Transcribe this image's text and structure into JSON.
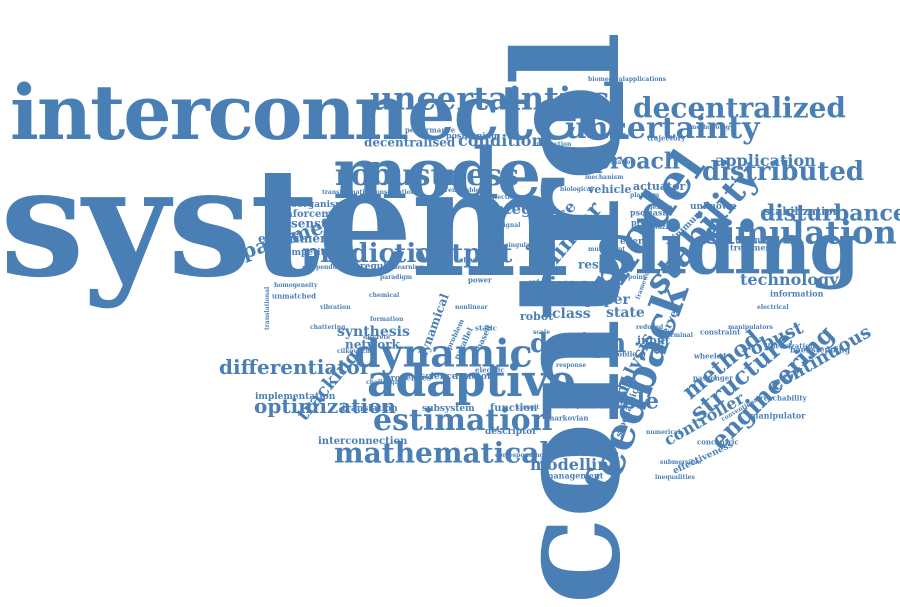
{
  "cloud": {
    "color": "#4a7fb5",
    "words": [
      {
        "text": "system",
        "weight": 1.0
      },
      {
        "text": "control",
        "weight": 0.95
      },
      {
        "text": "interconnected",
        "weight": 0.62
      },
      {
        "text": "mode",
        "weight": 0.6
      },
      {
        "text": "sliding",
        "weight": 0.55
      },
      {
        "text": "model",
        "weight": 0.42
      },
      {
        "text": "feedback",
        "weight": 0.4
      },
      {
        "text": "adaptive",
        "weight": 0.36
      },
      {
        "text": "dynamic",
        "weight": 0.34
      },
      {
        "text": "uncertainties",
        "weight": 0.3
      },
      {
        "text": "robustness",
        "weight": 0.3
      },
      {
        "text": "decentralized",
        "weight": 0.28
      },
      {
        "text": "uncertainty",
        "weight": 0.28
      },
      {
        "text": "simulation",
        "weight": 0.3
      },
      {
        "text": "stability",
        "weight": 0.3
      },
      {
        "text": "estimation",
        "weight": 0.28
      },
      {
        "text": "mathematical",
        "weight": 0.28
      },
      {
        "text": "distributed",
        "weight": 0.26
      },
      {
        "text": "predictive",
        "weight": 0.26
      },
      {
        "text": "output",
        "weight": 0.26
      },
      {
        "text": "disturbance",
        "weight": 0.24
      },
      {
        "text": "structure",
        "weight": 0.22
      },
      {
        "text": "engineering",
        "weight": 0.22
      },
      {
        "text": "design",
        "weight": 0.22
      },
      {
        "text": "optimization",
        "weight": 0.2
      },
      {
        "text": "differentiator",
        "weight": 0.2
      },
      {
        "text": "approach",
        "weight": 0.2
      },
      {
        "text": "parameter",
        "weight": 0.18
      },
      {
        "text": "linear",
        "weight": 0.18
      },
      {
        "text": "time",
        "weight": 0.18
      },
      {
        "text": "variable",
        "weight": 0.18
      },
      {
        "text": "method",
        "weight": 0.18
      },
      {
        "text": "analysis",
        "weight": 0.16
      },
      {
        "text": "robust",
        "weight": 0.16
      },
      {
        "text": "continuous",
        "weight": 0.15
      },
      {
        "text": "technology",
        "weight": 0.14
      },
      {
        "text": "application",
        "weight": 0.14
      },
      {
        "text": "modelling",
        "weight": 0.14
      },
      {
        "text": "tracking",
        "weight": 0.14
      },
      {
        "text": "condition",
        "weight": 0.13
      },
      {
        "text": "controller",
        "weight": 0.13
      },
      {
        "text": "surface",
        "weight": 0.12
      },
      {
        "text": "integral",
        "weight": 0.12
      },
      {
        "text": "synthesis",
        "weight": 0.11
      },
      {
        "text": "network",
        "weight": 0.1
      },
      {
        "text": "consensus",
        "weight": 0.1
      },
      {
        "text": "experimental",
        "weight": 0.1
      },
      {
        "text": "decentralised",
        "weight": 0.1
      },
      {
        "text": "paper",
        "weight": 0.1
      },
      {
        "text": "state",
        "weight": 0.1
      },
      {
        "text": "class",
        "weight": 0.1
      },
      {
        "text": "result",
        "weight": 0.09
      },
      {
        "text": "dynamical",
        "weight": 0.09
      },
      {
        "text": "stabilization",
        "weight": 0.09
      },
      {
        "text": "vehicle",
        "weight": 0.09
      },
      {
        "text": "actuator",
        "weight": 0.09
      },
      {
        "text": "interconnection",
        "weight": 0.09
      },
      {
        "text": "function",
        "weight": 0.09
      },
      {
        "text": "robot",
        "weight": 0.08
      },
      {
        "text": "input",
        "weight": 0.08
      },
      {
        "text": "observer",
        "weight": 0.08
      },
      {
        "text": "reinforcement",
        "weight": 0.08
      },
      {
        "text": "microorganism",
        "weight": 0.08
      },
      {
        "text": "competitive",
        "weight": 0.08
      },
      {
        "text": "implementation",
        "weight": 0.08
      },
      {
        "text": "translation",
        "weight": 0.08
      },
      {
        "text": "subsystem",
        "weight": 0.08
      },
      {
        "text": "science",
        "weight": 0.08
      },
      {
        "text": "reactor",
        "weight": 0.08
      },
      {
        "text": "properties",
        "weight": 0.07
      },
      {
        "text": "regular",
        "weight": 0.07
      },
      {
        "text": "descriptor",
        "weight": 0.07
      },
      {
        "text": "manipulator",
        "weight": 0.07
      },
      {
        "text": "backstepping",
        "weight": 0.07
      },
      {
        "text": "stochastic",
        "weight": 0.07
      },
      {
        "text": "effectiveness",
        "weight": 0.07
      },
      {
        "text": "energy",
        "weight": 0.07
      },
      {
        "text": "unknown",
        "weight": 0.07
      },
      {
        "text": "psoriasis",
        "weight": 0.06
      },
      {
        "text": "protein",
        "weight": 0.06
      },
      {
        "text": "treatment",
        "weight": 0.06
      },
      {
        "text": "technique",
        "weight": 0.06
      },
      {
        "text": "information",
        "weight": 0.06
      },
      {
        "text": "minimum",
        "weight": 0.06
      },
      {
        "text": "management",
        "weight": 0.06
      },
      {
        "text": "positioning",
        "weight": 0.06
      },
      {
        "text": "performance",
        "weight": 0.05
      },
      {
        "text": "trajectory",
        "weight": 0.05
      },
      {
        "text": "biomedicalapplications",
        "weight": 0.05
      },
      {
        "text": "unmatched",
        "weight": 0.05
      },
      {
        "text": "phase",
        "weight": 0.05
      },
      {
        "text": "mobile",
        "weight": 0.05
      },
      {
        "text": "electric",
        "weight": 0.05
      },
      {
        "text": "scheme",
        "weight": 0.05
      },
      {
        "text": "power",
        "weight": 0.05
      },
      {
        "text": "static",
        "weight": 0.05
      },
      {
        "text": "parallel",
        "weight": 0.05
      },
      {
        "text": "based",
        "weight": 0.05
      },
      {
        "text": "problem",
        "weight": 0.05
      },
      {
        "text": "markovian",
        "weight": 0.05
      },
      {
        "text": "concentric",
        "weight": 0.05
      },
      {
        "text": "constraint",
        "weight": 0.05
      },
      {
        "text": "wheeled",
        "weight": 0.05
      },
      {
        "text": "passenger",
        "weight": 0.05
      },
      {
        "text": "reachability",
        "weight": 0.05
      },
      {
        "text": "linearization",
        "weight": 0.05
      },
      {
        "text": "inequalities",
        "weight": 0.04
      },
      {
        "text": "terminal",
        "weight": 0.04
      },
      {
        "text": "infection",
        "weight": 0.04
      },
      {
        "text": "renewable",
        "weight": 0.04
      },
      {
        "text": "conservation",
        "weight": 0.04
      },
      {
        "text": "transformation",
        "weight": 0.04
      },
      {
        "text": "biological",
        "weight": 0.04
      },
      {
        "text": "mechanism",
        "weight": 0.04
      },
      {
        "text": "interaction",
        "weight": 0.04
      },
      {
        "text": "learning",
        "weight": 0.04
      },
      {
        "text": "pendulum",
        "weight": 0.04
      },
      {
        "text": "paradigm",
        "weight": 0.04
      },
      {
        "text": "chemical",
        "weight": 0.04
      },
      {
        "text": "challenging",
        "weight": 0.04
      },
      {
        "text": "homogeneity",
        "weight": 0.04
      },
      {
        "text": "translational",
        "weight": 0.04
      },
      {
        "text": "methodology",
        "weight": 0.04
      },
      {
        "text": "automation",
        "weight": 0.04
      },
      {
        "text": "framework",
        "weight": 0.04
      },
      {
        "text": "strategy",
        "weight": 0.04
      },
      {
        "text": "rule",
        "weight": 0.04
      },
      {
        "text": "free",
        "weight": 0.04
      },
      {
        "text": "order",
        "weight": 0.04
      },
      {
        "text": "point",
        "weight": 0.04
      },
      {
        "text": "scale",
        "weight": 0.04
      },
      {
        "text": "reduced",
        "weight": 0.04
      },
      {
        "text": "flexible",
        "weight": 0.04
      },
      {
        "text": "fuzzy",
        "weight": 0.04
      },
      {
        "text": "submersible",
        "weight": 0.04
      },
      {
        "text": "conventional",
        "weight": 0.04
      },
      {
        "text": "response",
        "weight": 0.04
      },
      {
        "text": "corresponding",
        "weight": 0.04
      },
      {
        "text": "circuit",
        "weight": 0.04
      },
      {
        "text": "multiagent",
        "weight": 0.04
      },
      {
        "text": "numerical",
        "weight": 0.04
      },
      {
        "text": "electrical",
        "weight": 0.04
      },
      {
        "text": "platform",
        "weight": 0.04
      },
      {
        "text": "signal",
        "weight": 0.04
      },
      {
        "text": "singular",
        "weight": 0.04
      },
      {
        "text": "chattering",
        "weight": 0.04
      },
      {
        "text": "discrete",
        "weight": 0.04
      },
      {
        "text": "formation",
        "weight": 0.04
      },
      {
        "text": "manipulators",
        "weight": 0.04
      },
      {
        "text": "vibration",
        "weight": 0.04
      },
      {
        "text": "cilkovitch",
        "weight": 0.04
      },
      {
        "text": "nonlinear",
        "weight": 0.04
      }
    ]
  }
}
